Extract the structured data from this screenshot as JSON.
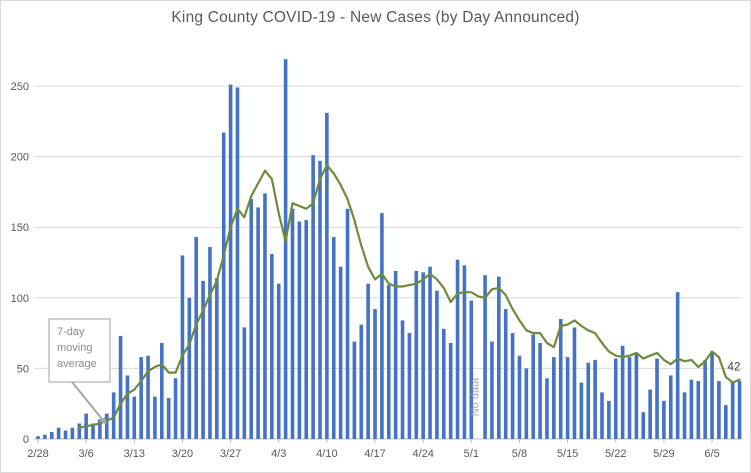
{
  "chart_data": {
    "type": "bar",
    "title": "King County COVID-19 - New Cases (by Day Announced)",
    "xlabel": "",
    "ylabel": "",
    "ylim": [
      0,
      250
    ],
    "yticks": [
      0,
      50,
      100,
      150,
      200,
      250
    ],
    "grid": true,
    "legend": "none",
    "xtick_every": 7,
    "xtick_labels": [
      "2/28",
      "3/6",
      "3/13",
      "3/20",
      "3/27",
      "4/3",
      "4/10",
      "4/17",
      "4/24",
      "5/1",
      "5/8",
      "5/15",
      "5/22",
      "5/29",
      "6/5"
    ],
    "categories": [
      "2/28",
      "2/29",
      "3/1",
      "3/2",
      "3/3",
      "3/4",
      "3/5",
      "3/6",
      "3/7",
      "3/8",
      "3/9",
      "3/10",
      "3/11",
      "3/12",
      "3/13",
      "3/14",
      "3/15",
      "3/16",
      "3/17",
      "3/18",
      "3/19",
      "3/20",
      "3/21",
      "3/22",
      "3/23",
      "3/24",
      "3/25",
      "3/26",
      "3/27",
      "3/28",
      "3/29",
      "3/30",
      "3/31",
      "4/1",
      "4/2",
      "4/3",
      "4/4",
      "4/5",
      "4/6",
      "4/7",
      "4/8",
      "4/9",
      "4/10",
      "4/11",
      "4/12",
      "4/13",
      "4/14",
      "4/15",
      "4/16",
      "4/17",
      "4/18",
      "4/19",
      "4/20",
      "4/21",
      "4/22",
      "4/23",
      "4/24",
      "4/25",
      "4/26",
      "4/27",
      "4/28",
      "4/29",
      "4/30",
      "5/1",
      "5/2",
      "5/3",
      "5/4",
      "5/5",
      "5/6",
      "5/7",
      "5/8",
      "5/9",
      "5/10",
      "5/11",
      "5/12",
      "5/13",
      "5/14",
      "5/15",
      "5/16",
      "5/17",
      "5/18",
      "5/19",
      "5/20",
      "5/21",
      "5/22",
      "5/23",
      "5/24",
      "5/25",
      "5/26",
      "5/27",
      "5/28",
      "5/29",
      "5/30",
      "5/31",
      "6/1",
      "6/2",
      "6/3",
      "6/4",
      "6/5",
      "6/6",
      "6/7",
      "6/8",
      "6/9"
    ],
    "series": [
      {
        "name": "New cases",
        "type": "bar",
        "color": "#4472C4",
        "values": [
          2,
          3,
          5,
          8,
          6,
          8,
          11,
          18,
          11,
          14,
          18,
          33,
          73,
          45,
          30,
          58,
          59,
          30,
          68,
          29,
          43,
          130,
          100,
          143,
          112,
          136,
          114,
          217,
          251,
          249,
          79,
          170,
          164,
          174,
          131,
          110,
          269,
          163,
          154,
          155,
          201,
          197,
          231,
          143,
          122,
          163,
          69,
          81,
          110,
          92,
          160,
          109,
          119,
          84,
          75,
          119,
          118,
          122,
          105,
          78,
          68,
          127,
          123,
          98,
          null,
          116,
          69,
          115,
          92,
          75,
          59,
          50,
          74,
          68,
          43,
          58,
          85,
          58,
          79,
          40,
          54,
          56,
          33,
          27,
          57,
          66,
          58,
          61,
          19,
          35,
          57,
          27,
          45,
          104,
          33,
          42,
          41,
          56,
          62,
          41,
          24,
          41,
          41
        ]
      },
      {
        "name": "7-day moving average",
        "type": "line",
        "color": "#6E8B3D",
        "values": [
          null,
          null,
          null,
          null,
          null,
          null,
          8,
          9,
          10,
          11,
          13,
          15,
          25,
          32,
          35,
          41,
          48,
          51,
          53,
          47,
          47,
          59,
          67,
          81,
          91,
          102,
          112,
          130,
          150,
          163,
          157,
          172,
          181,
          190,
          184,
          160,
          140,
          167,
          165,
          163,
          167,
          184,
          194,
          188,
          180,
          170,
          155,
          137,
          122,
          113,
          117,
          110,
          108,
          108,
          109,
          110,
          113,
          117,
          113,
          107,
          97,
          103,
          104,
          104,
          101,
          100,
          106,
          107,
          102,
          92,
          84,
          77,
          75,
          75,
          68,
          65,
          80,
          81,
          84,
          80,
          77,
          75,
          68,
          62,
          59,
          58,
          59,
          61,
          57,
          59,
          61,
          56,
          53,
          57,
          55,
          56,
          51,
          55,
          62,
          58,
          44,
          40,
          42
        ]
      }
    ],
    "annotations": {
      "callout": {
        "lines": [
          "7-day",
          "moving",
          "average"
        ],
        "text": "7-day moving average"
      },
      "no_data": {
        "label": "No data",
        "category": "5/2"
      },
      "last_value_label": "42"
    },
    "colors": {
      "bar": "#4472C4",
      "line": "#6E8B3D",
      "grid": "#D9D9D9",
      "axis": "#BFBFBF",
      "tick_text": "#595959",
      "title_text": "#595959",
      "callout_text": "#8C8C8C",
      "callout_border": "#BFBFBF",
      "arrow": "#A6A6A6",
      "no_data_text": "#A6A6A6",
      "end_label_text": "#404040"
    }
  }
}
